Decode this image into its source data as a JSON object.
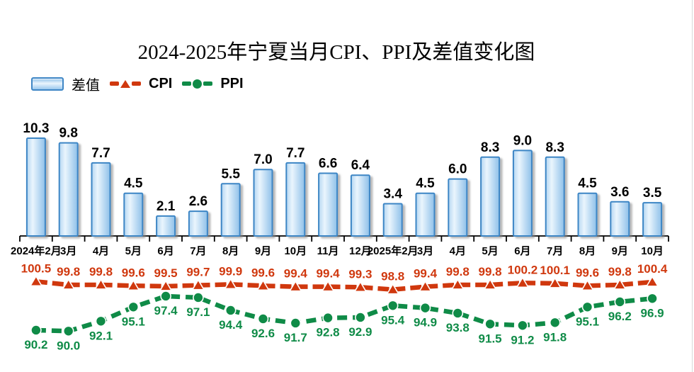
{
  "title": "2024-2025年宁夏当月CPI、PPI及差值变化图",
  "legend": {
    "bar_label": "差值",
    "cpi_label": "CPI",
    "ppi_label": "PPI"
  },
  "colors": {
    "bar_border": "#3e86c5",
    "bar_fill_light": "#eaf5fd",
    "bar_fill_dark": "#8ec0e9",
    "cpi_red": "#d0380e",
    "ppi_green": "#0f8b47",
    "text_black": "#000000",
    "background": "#ffffff"
  },
  "chart_data": {
    "type": "bar",
    "subtype": "combo-bar-plus-two-lines",
    "title": "2024-2025年宁夏当月CPI、PPI及差值变化图",
    "xlabel": "",
    "ylabel": "",
    "grid": false,
    "value_axis_visible": false,
    "legend_position": "top-left",
    "bar_axis_implied_range": [
      0,
      12
    ],
    "line_axis_implied_range": [
      88,
      102
    ],
    "categories": [
      "2024年2月",
      "3月",
      "4月",
      "5月",
      "6月",
      "7月",
      "8月",
      "9月",
      "10月",
      "11月",
      "12月",
      "2025年2月",
      "3月",
      "4月",
      "5月",
      "6月",
      "7月",
      "8月",
      "9月",
      "10月"
    ],
    "series": [
      {
        "name": "差值",
        "type": "bar",
        "marker": "none",
        "values": [
          "10.3",
          "9.8",
          "7.7",
          "4.5",
          "2.1",
          "2.6",
          "5.5",
          "7.0",
          "7.7",
          "6.6",
          "6.4",
          "3.4",
          "4.5",
          "6.0",
          "8.3",
          "9.0",
          "8.3",
          "4.5",
          "3.6",
          "3.5"
        ]
      },
      {
        "name": "CPI",
        "type": "line",
        "marker": "triangle",
        "values": [
          "100.5",
          "99.8",
          "99.8",
          "99.6",
          "99.5",
          "99.7",
          "99.9",
          "99.6",
          "99.4",
          "99.4",
          "99.3",
          "98.8",
          "99.4",
          "99.8",
          "99.8",
          "100.2",
          "100.1",
          "99.6",
          "99.8",
          "100.4"
        ]
      },
      {
        "name": "PPI",
        "type": "line",
        "marker": "circle",
        "values": [
          "90.2",
          "90.0",
          "92.1",
          "95.1",
          "97.4",
          "97.1",
          "94.4",
          "92.6",
          "91.7",
          "92.8",
          "92.9",
          "95.4",
          "94.9",
          "93.8",
          "91.5",
          "91.2",
          "91.8",
          "95.1",
          "96.2",
          "96.9"
        ]
      }
    ]
  }
}
